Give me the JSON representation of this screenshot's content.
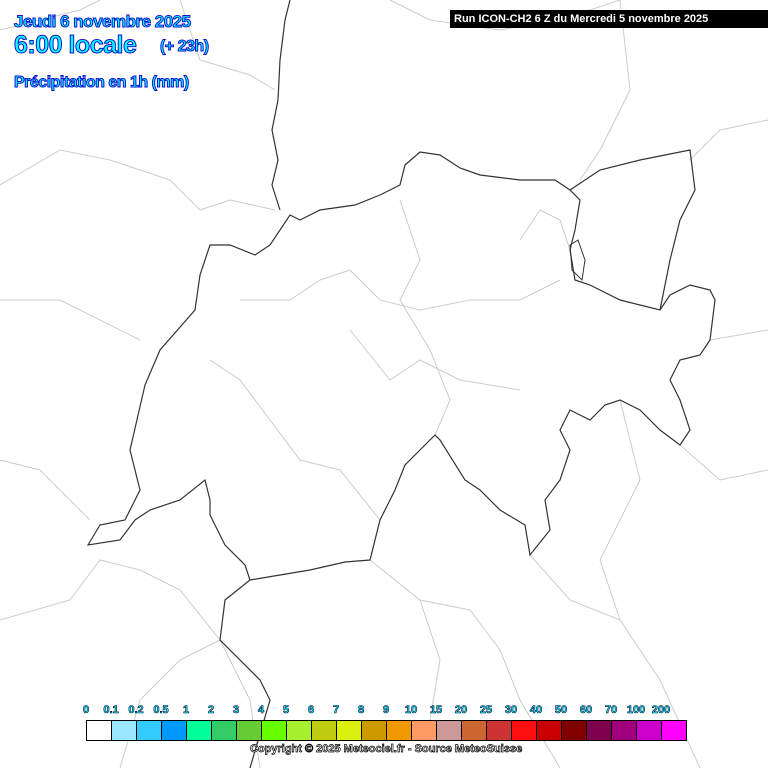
{
  "header": {
    "date": "Jeudi 6 novembre 2025",
    "time": "6:00 locale",
    "lead": "(+ 23h)",
    "parameter": "Précipitation en 1h (mm)",
    "run": "Run ICON-CH2 6 Z du Mercredi 5 novembre 2025"
  },
  "legend": {
    "labels": [
      "0",
      "0.1",
      "0.2",
      "0.5",
      "1",
      "2",
      "3",
      "4",
      "5",
      "6",
      "7",
      "8",
      "9",
      "10",
      "15",
      "20",
      "25",
      "30",
      "40",
      "50",
      "60",
      "70",
      "100",
      "200"
    ],
    "colors": [
      "#ffffff",
      "#99e6ff",
      "#33ccff",
      "#0099ff",
      "#00ff99",
      "#33cc66",
      "#66cc33",
      "#66ff00",
      "#a6f030",
      "#bfcc10",
      "#dcf010",
      "#cc9900",
      "#f09900",
      "#ff9966",
      "#cc9999",
      "#cc6633",
      "#cc3333",
      "#ff1010",
      "#c80000",
      "#800000",
      "#800050",
      "#a0007e",
      "#cc00cc",
      "#ff00ff"
    ]
  },
  "copyright": "Copyright © 2025 Meteociel.fr - Source MeteoSuisse",
  "map": {
    "precipitation": "none",
    "border_color": "#333333",
    "region_color": "#cccccc"
  }
}
